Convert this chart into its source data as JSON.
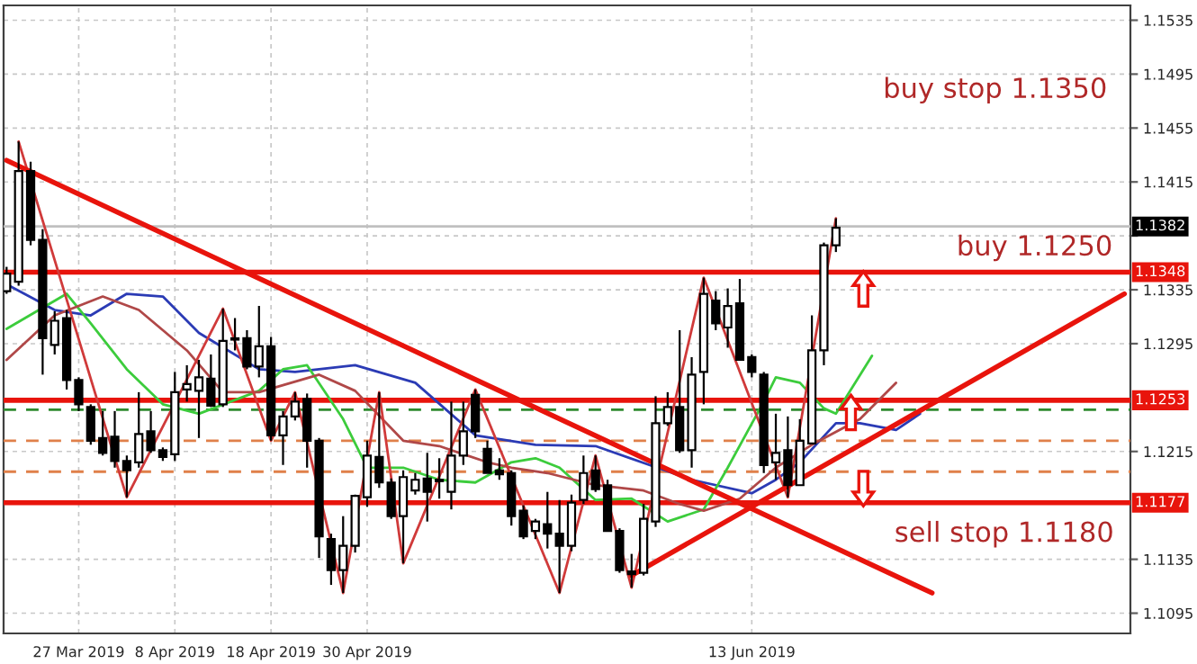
{
  "chart_data": {
    "type": "candlestick",
    "categories": [
      null,
      null,
      null,
      null,
      null,
      null,
      "27 Mar 2019",
      null,
      null,
      null,
      null,
      null,
      null,
      null,
      "8 Apr 2019",
      null,
      null,
      null,
      null,
      null,
      null,
      null,
      "18 Apr 2019",
      null,
      null,
      null,
      null,
      null,
      null,
      null,
      "30 Apr 2019",
      null,
      null,
      null,
      null,
      null,
      null,
      null,
      null,
      null,
      null,
      null,
      null,
      null,
      null,
      null,
      null,
      null,
      null,
      null,
      null,
      null,
      null,
      null,
      null,
      null,
      null,
      null,
      null,
      null,
      null,
      null,
      "13 Jun 2019",
      null,
      null,
      null,
      null,
      null,
      null,
      null,
      null,
      null,
      null,
      null,
      null,
      null,
      null,
      null,
      null,
      null,
      null,
      null,
      null,
      null,
      null,
      null,
      null,
      null,
      null,
      null,
      null,
      null,
      null,
      null
    ],
    "ohlc": [
      [
        1.1334,
        1.1352,
        1.1332,
        1.1347
      ],
      [
        1.1341,
        1.1445,
        1.1338,
        1.1423
      ],
      [
        1.1423,
        1.143,
        1.1368,
        1.1372
      ],
      [
        1.1372,
        1.138,
        1.1272,
        1.1299
      ],
      [
        1.1294,
        1.1319,
        1.1287,
        1.1312
      ],
      [
        1.1314,
        1.132,
        1.1261,
        1.1268
      ],
      [
        1.1268,
        1.127,
        1.1245,
        1.125
      ],
      [
        1.1248,
        1.125,
        1.122,
        1.1223
      ],
      [
        1.1225,
        1.1245,
        1.1212,
        1.1214
      ],
      [
        1.1226,
        1.1245,
        1.1203,
        1.1208
      ],
      [
        1.1208,
        1.1212,
        1.1181,
        1.1201
      ],
      [
        1.1207,
        1.1259,
        1.1203,
        1.1228
      ],
      [
        1.123,
        1.1245,
        1.1214,
        1.1216
      ],
      [
        1.1216,
        1.1218,
        1.1208,
        1.1211
      ],
      [
        1.1213,
        1.1274,
        1.1208,
        1.1259
      ],
      [
        1.1261,
        1.1279,
        1.1252,
        1.1265
      ],
      [
        1.126,
        1.1283,
        1.1225,
        1.127
      ],
      [
        1.1269,
        1.1287,
        1.1248,
        1.1249
      ],
      [
        1.125,
        1.1321,
        1.1248,
        1.1297
      ],
      [
        1.1299,
        1.1314,
        1.129,
        1.1298
      ],
      [
        1.1299,
        1.1305,
        1.1276,
        1.1278
      ],
      [
        1.1278,
        1.1323,
        1.127,
        1.1293
      ],
      [
        1.1293,
        1.13,
        1.1223,
        1.1227
      ],
      [
        1.1227,
        1.1245,
        1.1205,
        1.1241
      ],
      [
        1.1241,
        1.1259,
        1.1238,
        1.1252
      ],
      [
        1.1254,
        1.1258,
        1.1203,
        1.1223
      ],
      [
        1.1223,
        1.1225,
        1.1136,
        1.1152
      ],
      [
        1.115,
        1.1154,
        1.1116,
        1.1127
      ],
      [
        1.1127,
        1.1167,
        1.111,
        1.1145
      ],
      [
        1.1145,
        1.1183,
        1.114,
        1.1182
      ],
      [
        1.1181,
        1.1223,
        1.1174,
        1.1212
      ],
      [
        1.1211,
        1.1259,
        1.1188,
        1.1192
      ],
      [
        1.1192,
        1.1195,
        1.1165,
        1.1167
      ],
      [
        1.1167,
        1.1201,
        1.1132,
        1.1196
      ],
      [
        1.1186,
        1.1199,
        1.1183,
        1.1194
      ],
      [
        1.1195,
        1.1214,
        1.1163,
        1.1185
      ],
      [
        1.1193,
        1.121,
        1.118,
        1.1194
      ],
      [
        1.1185,
        1.1252,
        1.1172,
        1.1212
      ],
      [
        1.1212,
        1.1252,
        1.1205,
        1.123
      ],
      [
        1.1257,
        1.1261,
        1.1225,
        1.123
      ],
      [
        1.1217,
        1.1223,
        1.1199,
        1.1199
      ],
      [
        1.1201,
        1.121,
        1.1194,
        1.1198
      ],
      [
        1.1199,
        1.1201,
        1.116,
        1.1167
      ],
      [
        1.1171,
        1.1175,
        1.115,
        1.1152
      ],
      [
        1.1156,
        1.1165,
        1.115,
        1.1163
      ],
      [
        1.1161,
        1.1185,
        1.1143,
        1.1154
      ],
      [
        1.1154,
        1.1179,
        1.111,
        1.1145
      ],
      [
        1.1145,
        1.1183,
        1.1141,
        1.1177
      ],
      [
        1.1179,
        1.1212,
        1.1176,
        1.1199
      ],
      [
        1.1201,
        1.1212,
        1.1185,
        1.1187
      ],
      [
        1.119,
        1.1194,
        1.1156,
        1.1156
      ],
      [
        1.1156,
        1.1158,
        1.1125,
        1.1127
      ],
      [
        1.1126,
        1.1139,
        1.1114,
        1.1124
      ],
      [
        1.1125,
        1.1176,
        1.1123,
        1.1165
      ],
      [
        1.1163,
        1.1256,
        1.1159,
        1.1236
      ],
      [
        1.1236,
        1.1259,
        1.1234,
        1.1248
      ],
      [
        1.1248,
        1.1305,
        1.1214,
        1.1216
      ],
      [
        1.1216,
        1.1285,
        1.1203,
        1.1272
      ],
      [
        1.1274,
        1.1344,
        1.125,
        1.1332
      ],
      [
        1.1327,
        1.1334,
        1.1305,
        1.131
      ],
      [
        1.1307,
        1.1336,
        1.1292,
        1.1323
      ],
      [
        1.1325,
        1.1343,
        1.1283,
        1.1283
      ],
      [
        1.1285,
        1.1287,
        1.127,
        1.1274
      ],
      [
        1.1272,
        1.1274,
        1.1199,
        1.1205
      ],
      [
        1.1207,
        1.1243,
        1.1194,
        1.1214
      ],
      [
        1.1216,
        1.1241,
        1.1181,
        1.119
      ],
      [
        1.119,
        1.1239,
        1.119,
        1.1223
      ],
      [
        1.1221,
        1.1316,
        1.1221,
        1.129
      ],
      [
        1.129,
        1.137,
        1.1279,
        1.1368
      ],
      [
        1.1368,
        1.1388,
        1.1363,
        1.1381
      ],
      null,
      null,
      null,
      null,
      null,
      null,
      null,
      null,
      null,
      null,
      null,
      null,
      null,
      null,
      null,
      null,
      null,
      null,
      null,
      null,
      null,
      null,
      null,
      null
    ],
    "series": [
      {
        "type": "line",
        "color": "#2b3bb5",
        "values": [
          1.1339,
          null,
          null,
          null,
          1.132,
          null,
          null,
          1.1316,
          null,
          null,
          1.1332,
          null,
          null,
          1.133,
          null,
          null,
          1.1303,
          null,
          null,
          null,
          null,
          1.1276,
          null,
          null,
          1.1274,
          null,
          null,
          null,
          null,
          1.1279,
          null,
          null,
          null,
          null,
          1.1266,
          null,
          null,
          null,
          null,
          1.1227,
          null,
          null,
          null,
          null,
          1.122,
          null,
          null,
          null,
          null,
          1.1219,
          null,
          null,
          null,
          null,
          null,
          null,
          null,
          1.1194,
          null,
          null,
          null,
          null,
          1.1184,
          null,
          1.1194,
          null,
          1.1207,
          null,
          null,
          1.1236,
          null,
          1.1236,
          null,
          null,
          1.1231,
          null,
          1.1243,
          null,
          null,
          null,
          null,
          null,
          null,
          null,
          null,
          null,
          null,
          null,
          null,
          null,
          null,
          null,
          null,
          null
        ]
      },
      {
        "type": "line",
        "color": "#3ccc3c",
        "values": [
          1.1306,
          null,
          null,
          null,
          null,
          1.1332,
          null,
          1.131,
          null,
          null,
          1.1276,
          null,
          null,
          1.125,
          null,
          null,
          1.1243,
          null,
          null,
          null,
          null,
          1.126,
          null,
          1.1276,
          null,
          1.1279,
          null,
          null,
          1.1239,
          null,
          1.1203,
          null,
          null,
          1.1203,
          null,
          null,
          1.1194,
          null,
          null,
          1.1192,
          null,
          null,
          1.1207,
          null,
          1.121,
          null,
          1.1203,
          null,
          null,
          1.1179,
          null,
          null,
          1.118,
          null,
          null,
          1.1163,
          null,
          null,
          1.1172,
          null,
          1.1203,
          null,
          null,
          1.1252,
          1.127,
          null,
          1.1266,
          null,
          1.1247,
          1.1243,
          null,
          null,
          1.1286,
          null,
          null,
          null,
          null,
          null,
          null,
          null,
          null,
          null,
          null,
          null,
          null,
          null,
          null,
          null,
          null,
          null,
          null,
          null,
          null,
          null
        ]
      },
      {
        "type": "line",
        "color": "#b04848",
        "values": [
          1.1283,
          null,
          null,
          null,
          1.1316,
          null,
          null,
          null,
          1.133,
          null,
          null,
          1.132,
          null,
          null,
          null,
          1.129,
          null,
          null,
          1.1259,
          null,
          null,
          1.1259,
          null,
          null,
          null,
          null,
          1.1272,
          null,
          null,
          1.126,
          null,
          null,
          null,
          1.1223,
          null,
          null,
          1.1219,
          null,
          null,
          null,
          1.1207,
          null,
          1.1203,
          null,
          null,
          1.1199,
          null,
          null,
          null,
          1.119,
          null,
          null,
          null,
          1.1186,
          null,
          null,
          1.1176,
          null,
          1.1171,
          null,
          null,
          1.118,
          null,
          null,
          1.1203,
          null,
          null,
          1.122,
          null,
          null,
          null,
          1.1239,
          null,
          null,
          1.1266,
          null,
          null,
          null,
          null,
          null,
          null,
          null,
          null,
          null,
          null,
          null,
          null,
          null,
          null,
          null,
          null,
          null,
          null,
          null
        ]
      },
      {
        "type": "line",
        "color": "#d03a3a",
        "values": [
          null,
          1.1445,
          null,
          null,
          null,
          null,
          null,
          null,
          null,
          null,
          1.1181,
          null,
          null,
          null,
          null,
          null,
          null,
          null,
          1.1321,
          null,
          null,
          null,
          1.1223,
          null,
          1.1259,
          null,
          null,
          null,
          1.111,
          null,
          null,
          1.1259,
          null,
          1.1132,
          null,
          null,
          null,
          null,
          null,
          1.1261,
          null,
          null,
          null,
          null,
          null,
          null,
          1.111,
          null,
          null,
          1.1212,
          null,
          null,
          1.1114,
          null,
          null,
          null,
          null,
          null,
          1.1344,
          null,
          null,
          null,
          null,
          null,
          null,
          1.1181,
          null,
          null,
          null,
          1.1388,
          null,
          null,
          null,
          null,
          null,
          null,
          null,
          null,
          null,
          null,
          null,
          null,
          null,
          null,
          null,
          null,
          null,
          null,
          null,
          null,
          null,
          null,
          null,
          null
        ]
      },
      {
        "type": "line",
        "color": "#e8140c",
        "values": [
          1.1431,
          null,
          null,
          null,
          null,
          null,
          null,
          null,
          null,
          null,
          null,
          null,
          null,
          null,
          null,
          null,
          null,
          null,
          null,
          null,
          null,
          null,
          null,
          null,
          null,
          null,
          null,
          null,
          null,
          null,
          null,
          null,
          null,
          null,
          null,
          null,
          null,
          null,
          null,
          null,
          null,
          null,
          null,
          null,
          null,
          null,
          null,
          null,
          null,
          null,
          null,
          null,
          null,
          null,
          null,
          null,
          null,
          null,
          null,
          null,
          null,
          null,
          null,
          null,
          null,
          null,
          null,
          null,
          null,
          null,
          null,
          null,
          null,
          null,
          null,
          null,
          null,
          1.111,
          null,
          null,
          null,
          null,
          null,
          null,
          null,
          null,
          null,
          null,
          null,
          null,
          null,
          null,
          null,
          null
        ]
      },
      {
        "type": "line",
        "color": "#e8140c",
        "values": [
          null,
          null,
          null,
          null,
          null,
          null,
          null,
          null,
          null,
          null,
          null,
          null,
          null,
          null,
          null,
          null,
          null,
          null,
          null,
          null,
          null,
          null,
          null,
          null,
          null,
          null,
          null,
          null,
          null,
          null,
          null,
          null,
          null,
          null,
          null,
          null,
          null,
          null,
          null,
          null,
          null,
          null,
          null,
          null,
          null,
          null,
          null,
          null,
          null,
          null,
          null,
          null,
          1.1123,
          null,
          null,
          null,
          null,
          null,
          null,
          null,
          null,
          null,
          null,
          null,
          null,
          null,
          null,
          null,
          null,
          null,
          null,
          null,
          null,
          null,
          null,
          null,
          null,
          null,
          null,
          null,
          null,
          null,
          null,
          null,
          null,
          null,
          null,
          null,
          null,
          null,
          null,
          null,
          null,
          1.1332
        ]
      }
    ],
    "ylim": [
      1.108,
      1.1546
    ],
    "yticks": [
      1.1095,
      1.1135,
      1.1215,
      1.1295,
      1.1335,
      {
        "value": 1.1375,
        "label": null
      },
      1.1415,
      1.1455,
      1.1495,
      1.1535
    ],
    "grid": true,
    "ref_lines": [
      {
        "axis": "y",
        "value": 1.1382,
        "label": "1.1382",
        "color": "#c0c0c0",
        "line_style": "solid"
      },
      {
        "axis": "y",
        "value": 1.1348,
        "label": "1.1348",
        "color": "#e8140c",
        "line_style": "solid"
      },
      {
        "axis": "y",
        "value": 1.1253,
        "label": "1.1253",
        "color": "#e8140c",
        "line_style": "solid"
      },
      {
        "axis": "y",
        "value": 1.1177,
        "label": "1.1177",
        "color": "#e8140c",
        "line_style": "solid"
      },
      {
        "axis": "y",
        "value": 1.1246,
        "label": null,
        "color": "#2e8b2e",
        "line_style": "dashed"
      },
      {
        "axis": "y",
        "value": 1.1223,
        "label": null,
        "color": "#e0804a",
        "line_style": "dashed"
      },
      {
        "axis": "y",
        "value": 1.12,
        "label": null,
        "color": "#e0804a",
        "line_style": "dashed"
      }
    ],
    "annotations": [
      "buy stop 1.1350",
      "buy 1.1250",
      "sell stop 1.1180"
    ]
  }
}
